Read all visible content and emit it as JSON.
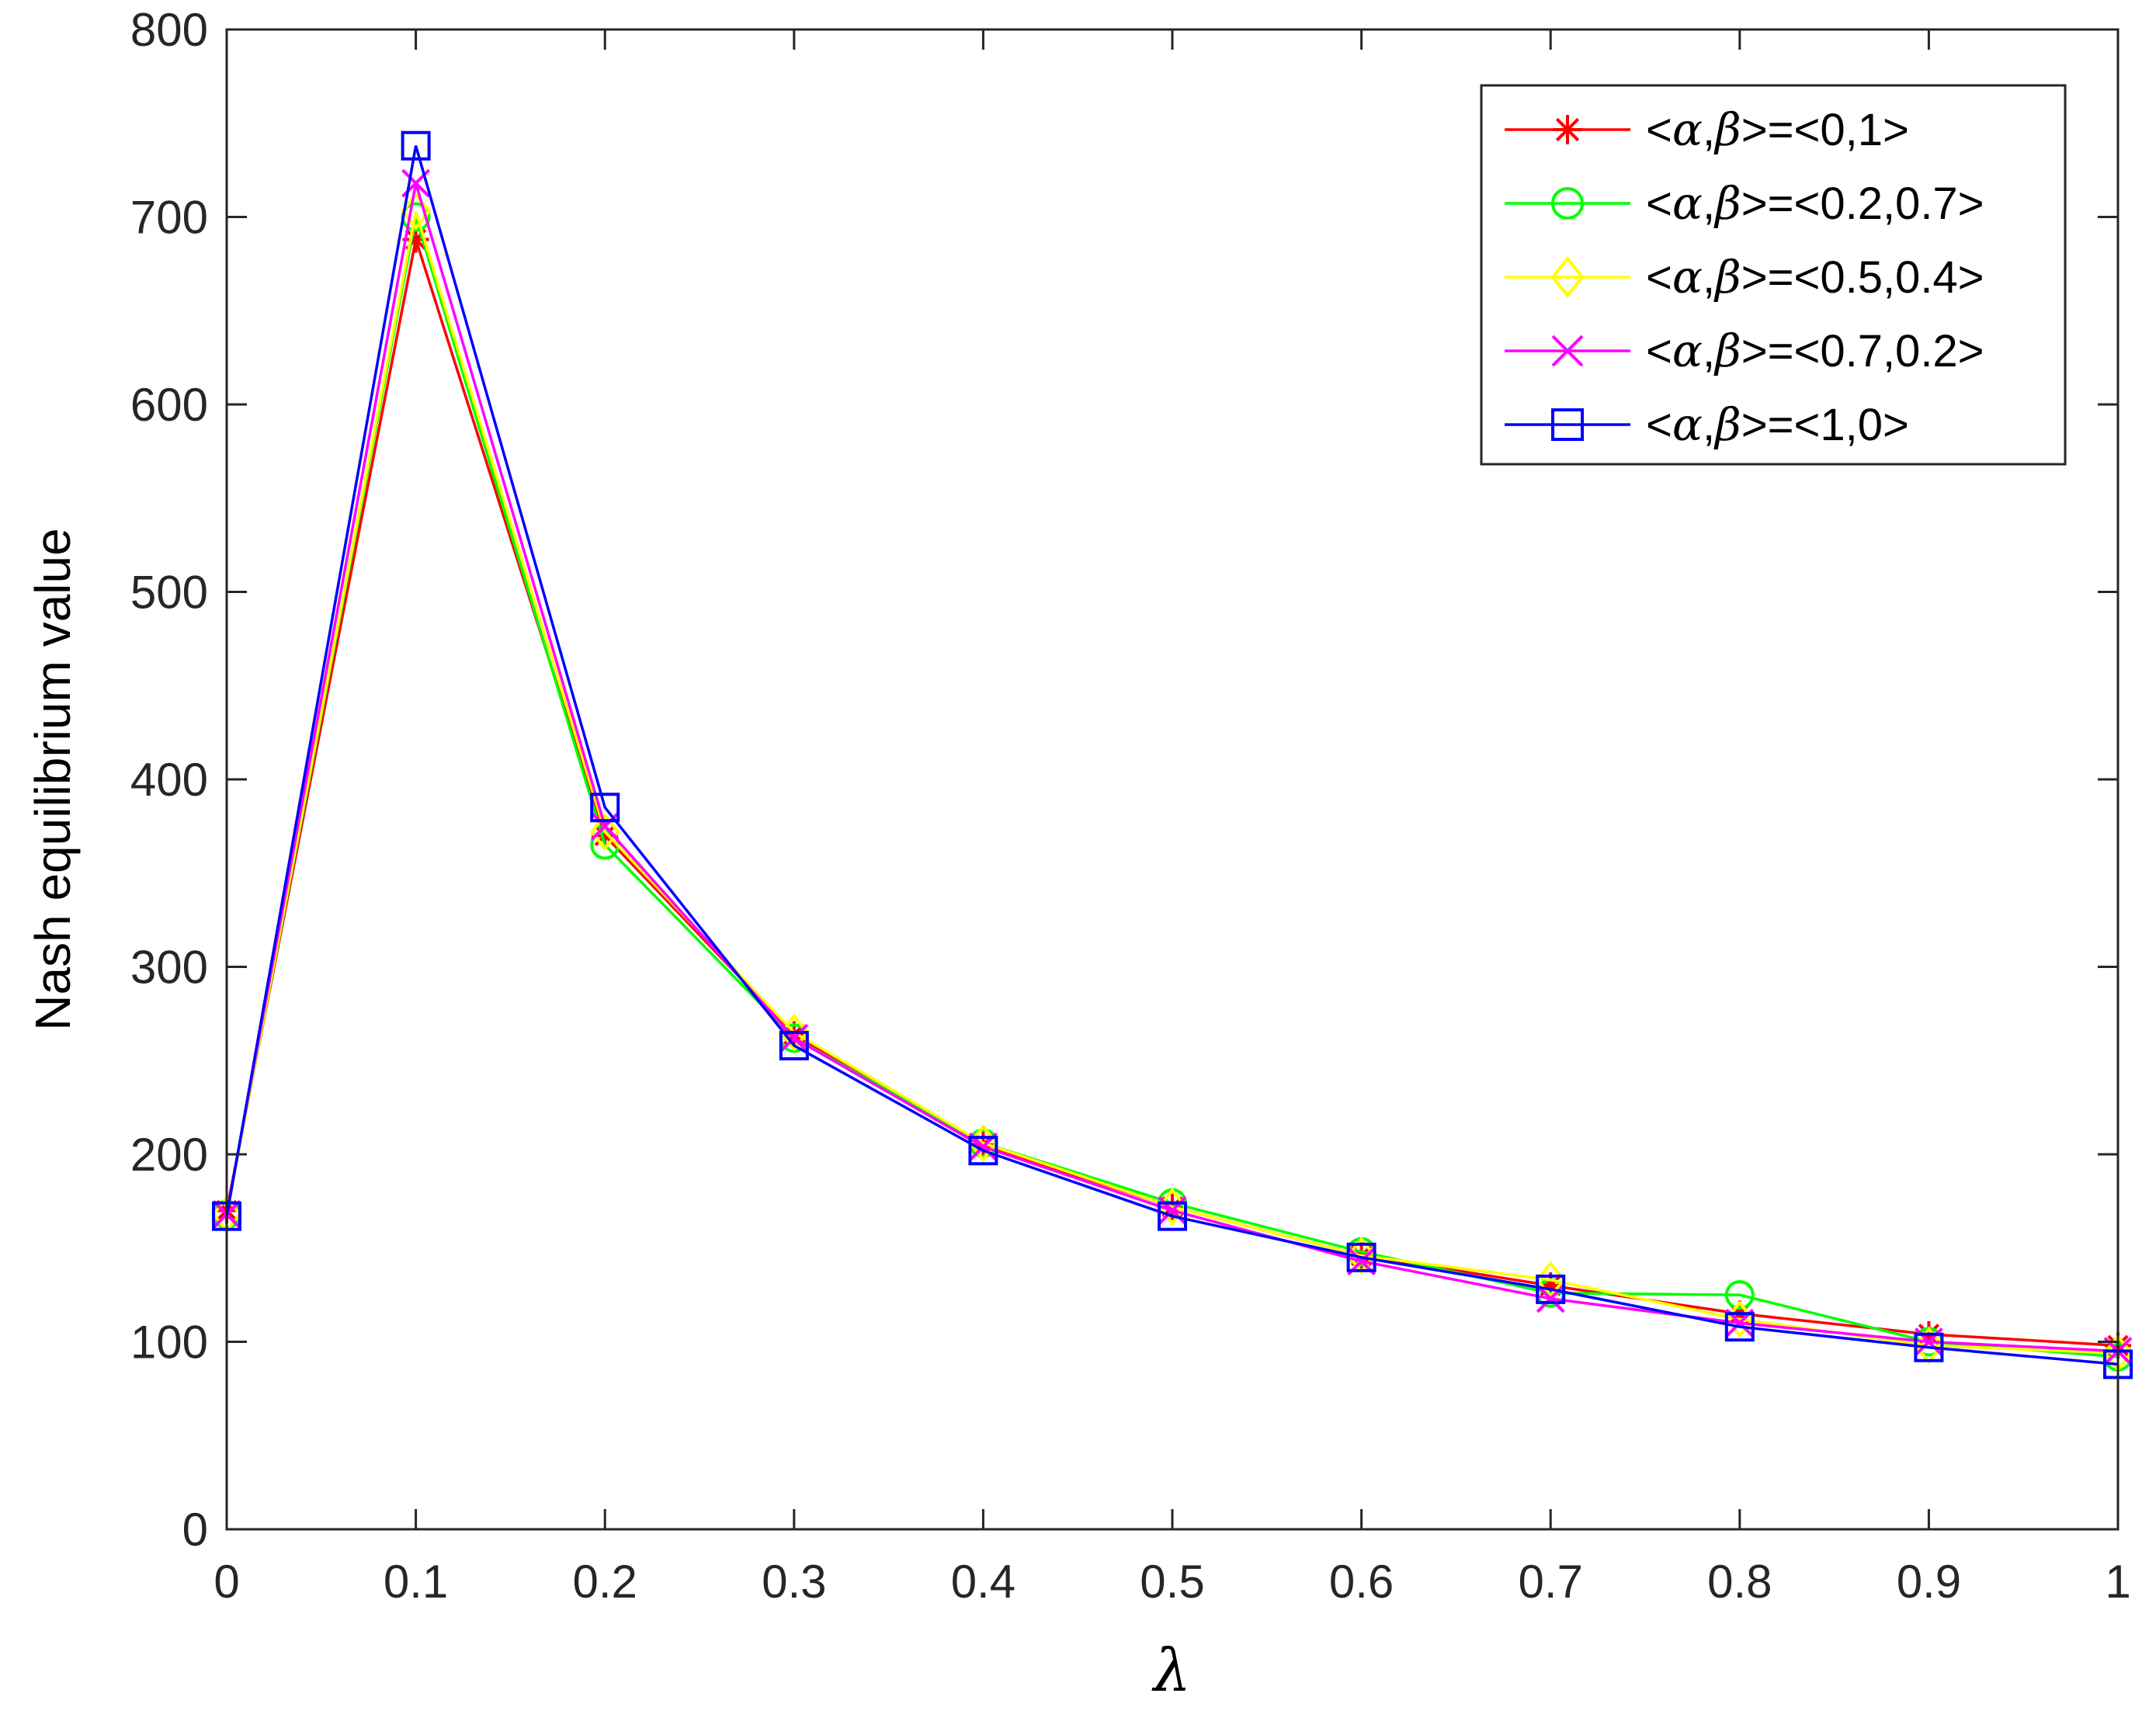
{
  "chart_data": {
    "type": "line",
    "title": "",
    "xlabel": "λ",
    "ylabel": "Nash equilibrium value",
    "xlim": [
      0,
      1
    ],
    "ylim": [
      0,
      800
    ],
    "x": [
      0,
      0.1,
      0.2,
      0.3,
      0.4,
      0.5,
      0.6,
      0.7,
      0.8,
      0.9,
      1
    ],
    "xticks": [
      "0",
      "0.1",
      "0.2",
      "0.3",
      "0.4",
      "0.5",
      "0.6",
      "0.7",
      "0.8",
      "0.9",
      "1"
    ],
    "yticks": [
      "0",
      "100",
      "200",
      "300",
      "400",
      "500",
      "600",
      "700",
      "800"
    ],
    "grid": false,
    "legend_position": "top-right",
    "series": [
      {
        "name": "<α,β>=<0,1>",
        "name_parts": [
          "<",
          "α",
          ",",
          "β",
          ">=<0,1>"
        ],
        "color": "#ff0000",
        "marker": "asterisk",
        "values": [
          170,
          688,
          370,
          264,
          205,
          172,
          146,
          130,
          115,
          104,
          98
        ]
      },
      {
        "name": "<α,β>=<0.2,0.7>",
        "name_parts": [
          "<",
          "α",
          ",",
          "β",
          ">=<0.2,0.7>"
        ],
        "color": "#00ff00",
        "marker": "circle",
        "values": [
          168,
          700,
          365,
          262,
          206,
          174,
          148,
          126,
          125,
          100,
          92
        ]
      },
      {
        "name": "<α,β>=<0.5,0.4>",
        "name_parts": [
          "<",
          "α",
          ",",
          "β",
          ">=<0.5,0.4>"
        ],
        "color": "#ffff00",
        "marker": "diamond",
        "values": [
          168,
          703,
          372,
          265,
          206,
          172,
          146,
          133,
          112,
          98,
          94
        ]
      },
      {
        "name": "<α,β>=<0.7,0.2>",
        "name_parts": [
          "<",
          "α",
          ",",
          "β",
          ">=<0.7,0.2>"
        ],
        "color": "#ff00ff",
        "marker": "x",
        "values": [
          168,
          718,
          375,
          262,
          204,
          170,
          143,
          123,
          110,
          100,
          95
        ]
      },
      {
        "name": "<α,β>=<1,0>",
        "name_parts": [
          "<",
          "α",
          ",",
          "β",
          ">=<1,0>"
        ],
        "color": "#0000ff",
        "marker": "square",
        "values": [
          167,
          738,
          385,
          258,
          202,
          167,
          145,
          128,
          108,
          97,
          88
        ]
      }
    ]
  }
}
